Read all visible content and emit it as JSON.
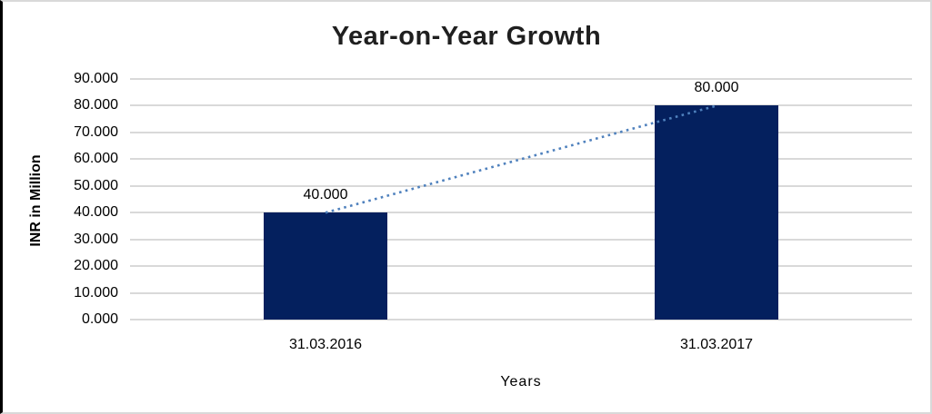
{
  "chart_data": {
    "type": "bar",
    "title": "Year-on-Year Growth",
    "xlabel": "Years",
    "ylabel": "INR in Million",
    "categories": [
      "31.03.2016",
      "31.03.2017"
    ],
    "values": [
      40,
      80
    ],
    "value_labels": [
      "40.000",
      "80.000"
    ],
    "ylim": [
      0,
      90
    ],
    "y_tick_values": [
      0,
      10,
      20,
      30,
      40,
      50,
      60,
      70,
      80,
      90
    ],
    "y_tick_labels": [
      "0.000",
      "10.000",
      "20.000",
      "30.000",
      "40.000",
      "50.000",
      "60.000",
      "70.000",
      "80.000",
      "90.000"
    ],
    "grid": true,
    "legend": "none",
    "trendline": {
      "style": "dotted",
      "connects": "bar tops",
      "from_value": 40,
      "to_value": 80
    },
    "colors": {
      "bar": "#04205e",
      "trendline": "#4f81bd",
      "gridline": "#d9d9d9",
      "title_text": "#1f1f1f",
      "axis_text": "#000000",
      "frame_border": "#d9d9d9",
      "left_border": "#000000",
      "background": "#ffffff"
    }
  }
}
